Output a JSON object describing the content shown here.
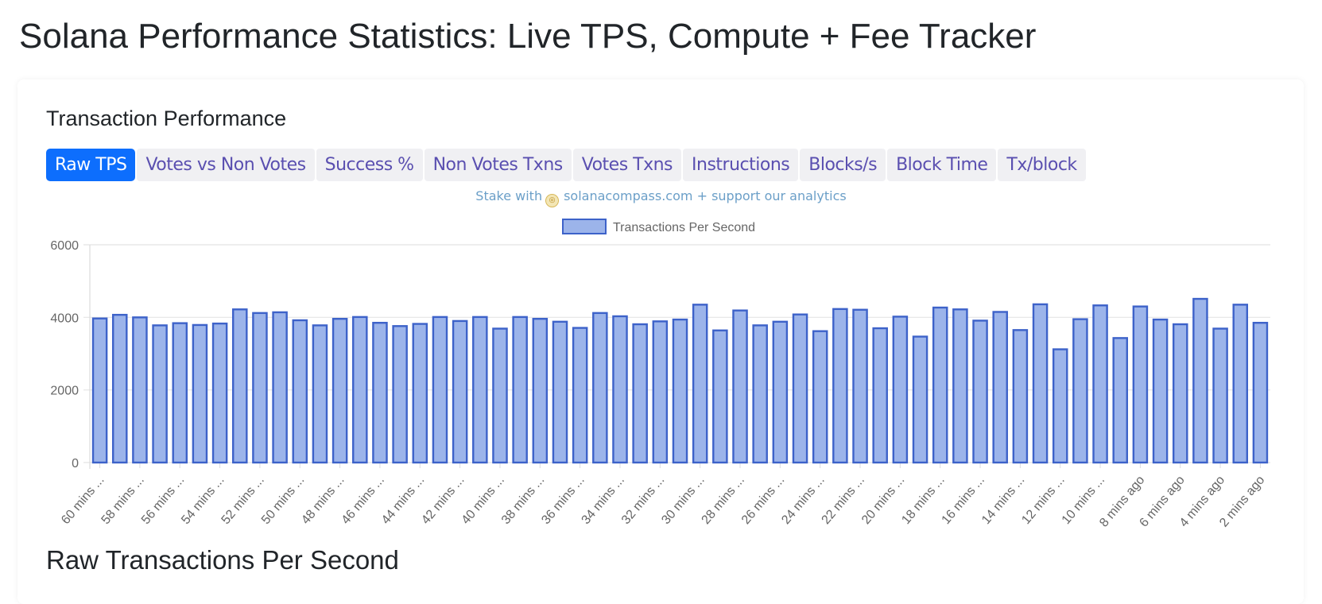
{
  "page": {
    "title": "Solana Performance Statistics: Live TPS, Compute + Fee Tracker",
    "section_title": "Transaction Performance",
    "bottom_title": "Raw Transactions Per Second"
  },
  "tabs": [
    {
      "label": "Raw TPS",
      "active": true
    },
    {
      "label": "Votes vs Non Votes",
      "active": false
    },
    {
      "label": "Success %",
      "active": false
    },
    {
      "label": "Non Votes Txns",
      "active": false
    },
    {
      "label": "Votes Txns",
      "active": false
    },
    {
      "label": "Instructions",
      "active": false
    },
    {
      "label": "Blocks/s",
      "active": false
    },
    {
      "label": "Block Time",
      "active": false
    },
    {
      "label": "Tx/block",
      "active": false
    }
  ],
  "promo": {
    "prefix": "Stake with",
    "link": "solanacompass.com",
    "suffix": "+ support our analytics",
    "icon": "solana-compass-coin-icon"
  },
  "colors": {
    "accent": "#0d6efd",
    "tab_text": "#5a4fb0",
    "bar_fill": "#9cb4ea",
    "bar_border": "#3d62c9",
    "promo_text": "#6b9fc8"
  },
  "chart_data": {
    "type": "bar",
    "title": "",
    "xlabel": "",
    "ylabel": "",
    "ylim": [
      0,
      6000
    ],
    "yticks": [
      "0",
      "2000",
      "4000",
      "6000"
    ],
    "grid": true,
    "legend_position": "top-center",
    "tick_labels": [
      "60 mins ...",
      "58 mins ...",
      "56 mins ...",
      "54 mins ...",
      "52 mins ...",
      "50 mins ...",
      "48 mins ...",
      "46 mins ...",
      "44 mins ...",
      "42 mins ...",
      "40 mins ...",
      "38 mins ...",
      "36 mins ...",
      "34 mins ...",
      "32 mins ...",
      "30 mins ...",
      "28 mins ...",
      "26 mins ...",
      "24 mins ...",
      "22 mins ...",
      "20 mins ...",
      "18 mins ...",
      "16 mins ...",
      "14 mins ...",
      "12 mins ...",
      "10 mins ...",
      "8 mins ago",
      "6 mins ago",
      "4 mins ago",
      "2 mins ago"
    ],
    "series": [
      {
        "name": "Transactions Per Second",
        "values": [
          3970,
          4070,
          4000,
          3780,
          3840,
          3790,
          3830,
          4220,
          4120,
          4140,
          3920,
          3780,
          3960,
          4010,
          3850,
          3760,
          3820,
          4010,
          3900,
          4010,
          3690,
          4010,
          3960,
          3880,
          3710,
          4120,
          4030,
          3810,
          3890,
          3940,
          4350,
          3640,
          4190,
          3780,
          3880,
          4080,
          3620,
          4230,
          4210,
          3700,
          4020,
          3470,
          4270,
          4220,
          3910,
          4150,
          3650,
          4360,
          3120,
          3950,
          4330,
          3430,
          4300,
          3940,
          3810,
          4510,
          3690,
          4350,
          3850
        ]
      }
    ]
  }
}
